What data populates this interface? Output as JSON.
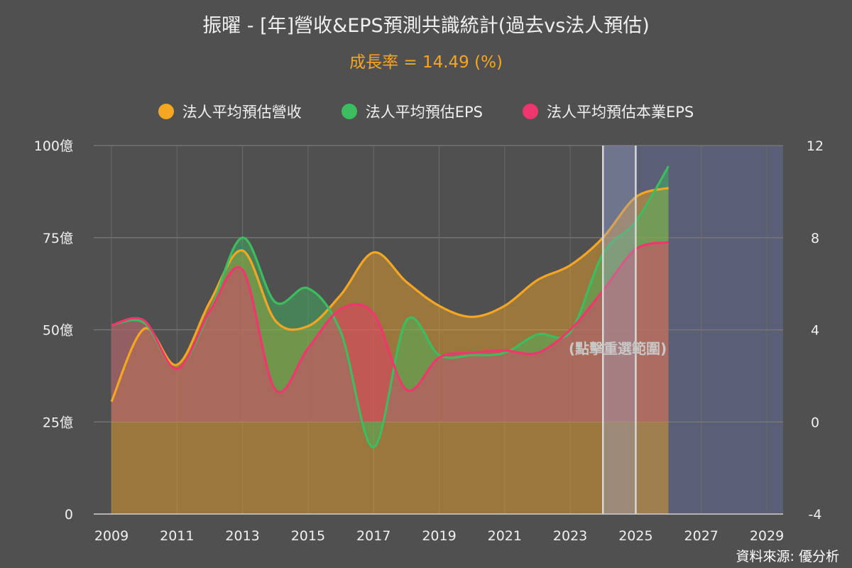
{
  "title": "振曜 - [年]營收&EPS預測共識統計(過去vs法人預估)",
  "subtitle": "成長率 = 14.49 (%)",
  "source": "資料來源: 優分析",
  "reset_zoom_label": "(點擊重選範圍)",
  "colors": {
    "background": "#505050",
    "revenue": "#f5a623",
    "eps": "#3dbd5f",
    "core_eps": "#f0366e",
    "forecast_band": "#5b6078",
    "highlight_band": "#9aa0bd"
  },
  "chart_data": {
    "type": "area",
    "x": [
      2009,
      2010,
      2011,
      2012,
      2013,
      2014,
      2015,
      2016,
      2017,
      2018,
      2019,
      2020,
      2021,
      2022,
      2023,
      2024,
      2025,
      2026
    ],
    "x_ticks": [
      "2009",
      "2011",
      "2013",
      "2015",
      "2017",
      "2019",
      "2021",
      "2023",
      "2025",
      "2027",
      "2029"
    ],
    "xlim": [
      2009,
      2029.5
    ],
    "y_left": {
      "ticks": [
        "0",
        "25億",
        "50億",
        "75億",
        "100億"
      ],
      "ylim": [
        0,
        100
      ],
      "unit": "億"
    },
    "y_right": {
      "ticks": [
        "-4",
        "0",
        "4",
        "8",
        "12"
      ],
      "ylim": [
        -4,
        12
      ]
    },
    "forecast_region": [
      2024,
      2029.5
    ],
    "highlight_region": [
      2024,
      2025
    ],
    "series": [
      {
        "name": "法人平均預估營收",
        "axis": "left",
        "color": "#f5a623",
        "values": [
          30.5,
          50.3,
          40.5,
          57.5,
          71.5,
          52.5,
          51.0,
          59.5,
          71.0,
          63.0,
          56.5,
          53.5,
          56.5,
          63.5,
          67.5,
          75.0,
          86.0,
          88.5
        ]
      },
      {
        "name": "法人平均預估EPS",
        "axis": "right",
        "color": "#3dbd5f",
        "values": [
          4.2,
          4.3,
          2.3,
          4.8,
          8.0,
          5.2,
          5.8,
          3.9,
          -1.1,
          4.4,
          2.9,
          2.9,
          3.0,
          3.8,
          3.9,
          7.3,
          8.7,
          11.1
        ]
      },
      {
        "name": "法人平均預估本業EPS",
        "axis": "right",
        "color": "#f0366e",
        "values": [
          4.2,
          4.4,
          2.3,
          4.8,
          6.6,
          1.4,
          3.2,
          4.9,
          4.7,
          1.4,
          2.8,
          3.0,
          3.1,
          3.0,
          4.0,
          5.7,
          7.5,
          7.8
        ]
      }
    ]
  }
}
